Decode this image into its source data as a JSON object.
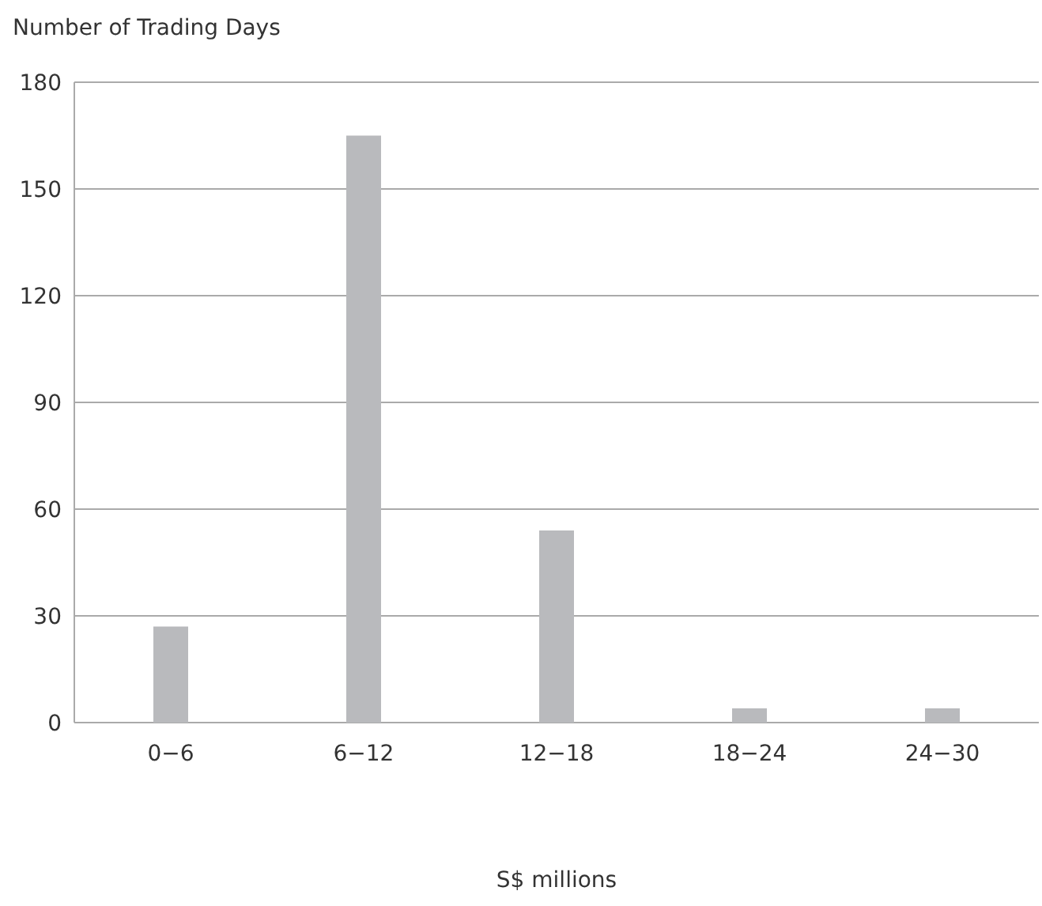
{
  "chart_data": {
    "type": "bar",
    "ylabel": "Number of Trading Days",
    "xlabel": "S$ millions",
    "categories": [
      "0−6",
      "6−12",
      "12−18",
      "18−24",
      "24−30"
    ],
    "values": [
      27,
      165,
      54,
      4,
      4
    ],
    "color": "#b9babd",
    "ylim": [
      0,
      180
    ],
    "yticks": [
      0,
      30,
      60,
      90,
      120,
      150,
      180
    ],
    "grid": "y",
    "legend": false
  }
}
